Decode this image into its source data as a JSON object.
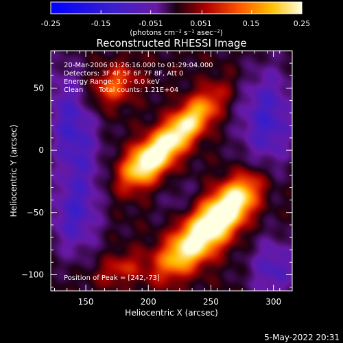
{
  "colorbar": {
    "tick_labels": [
      "-0.25",
      "-0.15",
      "-0.051",
      "0.051",
      "0.15",
      "0.25"
    ],
    "range": [
      -0.25,
      0.25
    ],
    "units_label": "(photons cm⁻² s⁻¹ asec⁻²)"
  },
  "annotations": {
    "time_range": "20-Mar-2006 01:26:16.000 to 01:29:04.000",
    "detectors": "Detectors: 3F 4F 5F 6F 7F 8F, Att 0",
    "energy": "Energy Range: 3.0 - 6.0 keV",
    "clean_label": "Clean",
    "total_counts": "Total counts: 1.21E+04",
    "peak": "Position of Peak = [242,-73]"
  },
  "footer": {
    "date_stamp": "5-May-2022 20:31"
  },
  "colors": {
    "background": "#000000",
    "axes": "#ffffff"
  },
  "chart_data": {
    "type": "heatmap",
    "title": "Reconstructed RHESSI Image",
    "xlabel": "Heliocentric X (arcsec)",
    "ylabel": "Heliocentric Y (arcsec)",
    "xlim": [
      122,
      315
    ],
    "ylim": [
      -113,
      80
    ],
    "x_ticks": [
      150,
      200,
      250,
      300
    ],
    "y_ticks": [
      50,
      0,
      -50,
      -100
    ],
    "x_tick_labels": [
      "150",
      "200",
      "250",
      "300"
    ],
    "y_tick_labels": [
      "50",
      "0",
      "−50",
      "−100"
    ],
    "colormap": "blue-purple-red-yellow-white (RHESSI)",
    "peak": [
      242,
      -73
    ],
    "sources": [
      {
        "x": 198,
        "y": -10,
        "amplitude": 0.22,
        "sx": 17,
        "sy": 10,
        "rotation_deg": 43
      },
      {
        "x": 228,
        "y": 18,
        "amplitude": 0.24,
        "sx": 26,
        "sy": 9,
        "rotation_deg": 45
      },
      {
        "x": 172,
        "y": 52,
        "amplitude": 0.12,
        "sx": 14,
        "sy": 10,
        "rotation_deg": 35
      },
      {
        "x": 248,
        "y": -62,
        "amplitude": 0.24,
        "sx": 22,
        "sy": 12,
        "rotation_deg": 45
      },
      {
        "x": 270,
        "y": -40,
        "amplitude": 0.2,
        "sx": 18,
        "sy": 10,
        "rotation_deg": 48
      },
      {
        "x": 225,
        "y": -85,
        "amplitude": 0.14,
        "sx": 18,
        "sy": 10,
        "rotation_deg": 40
      },
      {
        "x": 178,
        "y": -95,
        "amplitude": 0.08,
        "sx": 14,
        "sy": 8,
        "rotation_deg": 20
      },
      {
        "x": 140,
        "y": 15,
        "amplitude": -0.12,
        "sx": 14,
        "sy": 36,
        "rotation_deg": 10
      },
      {
        "x": 140,
        "y": -55,
        "amplitude": -0.1,
        "sx": 14,
        "sy": 22,
        "rotation_deg": 0
      },
      {
        "x": 295,
        "y": 25,
        "amplitude": -0.12,
        "sx": 16,
        "sy": 30,
        "rotation_deg": 0
      },
      {
        "x": 300,
        "y": -95,
        "amplitude": -0.1,
        "sx": 14,
        "sy": 18,
        "rotation_deg": 0
      },
      {
        "x": 225,
        "y": -40,
        "amplitude": -0.04,
        "sx": 14,
        "sy": 10,
        "rotation_deg": 45
      }
    ]
  }
}
